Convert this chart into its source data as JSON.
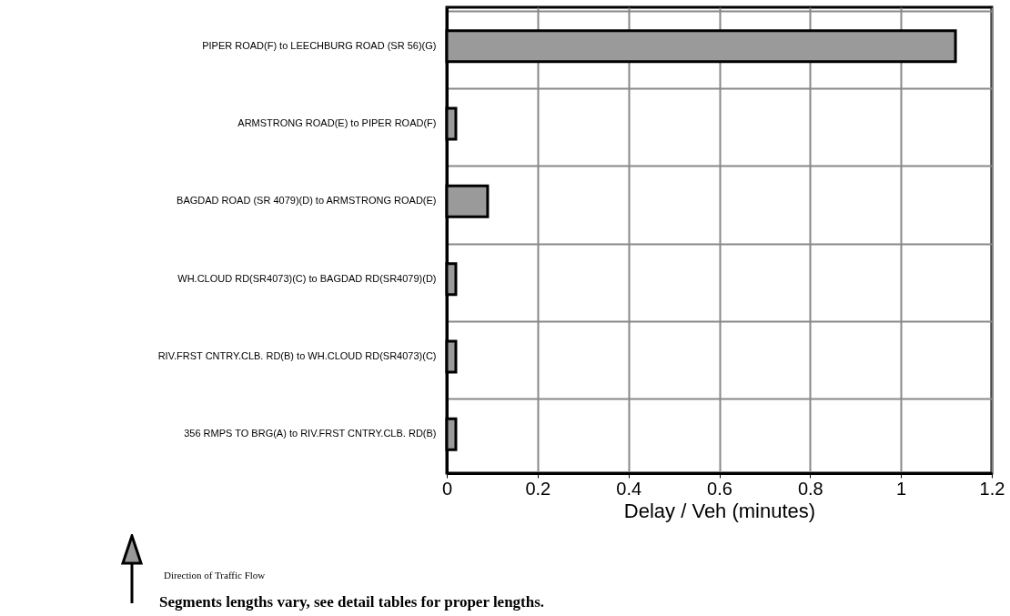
{
  "chart_data": {
    "type": "bar",
    "orientation": "horizontal",
    "xlabel": "Delay / Veh (minutes)",
    "categories": [
      "PIPER ROAD(F) to LEECHBURG ROAD (SR 56)(G)",
      "ARMSTRONG ROAD(E) to PIPER ROAD(F)",
      "BAGDAD ROAD (SR 4079)(D) to ARMSTRONG ROAD(E)",
      "WH.CLOUD RD(SR4073)(C) to BAGDAD RD(SR4079)(D)",
      "RIV.FRST CNTRY.CLB. RD(B) to WH.CLOUD RD(SR4073)(C)",
      "356 RMPS TO BRG(A) to RIV.FRST CNTRY.CLB. RD(B)"
    ],
    "values": [
      1.12,
      0.02,
      0.09,
      0.02,
      0.02,
      0.02
    ],
    "color": "#9a9a9a",
    "xlim": [
      0,
      1.2
    ],
    "xticks": [
      0,
      0.2,
      0.4,
      0.6,
      0.8,
      1,
      1.2
    ],
    "grid": true,
    "annotations": [
      "Direction of Traffic Flow",
      "Segments lengths vary, see detail tables for proper lengths."
    ]
  }
}
